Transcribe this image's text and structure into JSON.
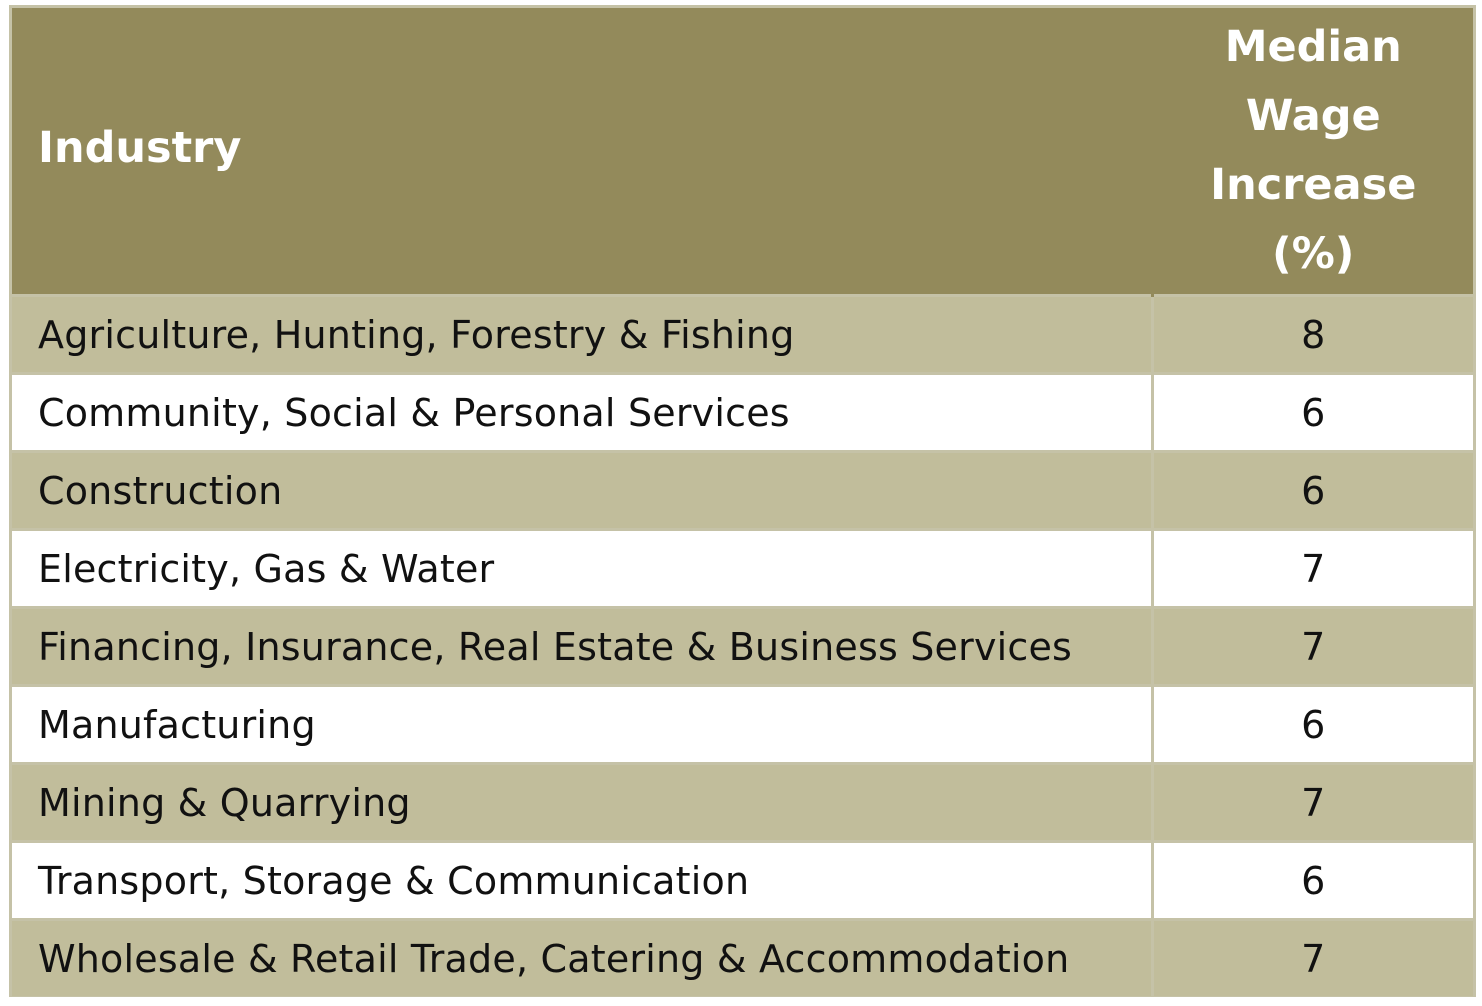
{
  "table": {
    "header": {
      "industry": "Industry",
      "value_lines": [
        "Median",
        "Wage",
        "Increase",
        "(%)"
      ]
    },
    "rows": [
      {
        "industry": "Agriculture, Hunting, Forestry & Fishing",
        "value": "8"
      },
      {
        "industry": "Community, Social & Personal Services",
        "value": "6"
      },
      {
        "industry": "Construction",
        "value": "6"
      },
      {
        "industry": "Electricity, Gas & Water",
        "value": "7"
      },
      {
        "industry": "Financing, Insurance, Real Estate & Business Services",
        "value": "7"
      },
      {
        "industry": "Manufacturing",
        "value": "6"
      },
      {
        "industry": "Mining & Quarrying",
        "value": "7"
      },
      {
        "industry": "Transport, Storage & Communication",
        "value": "6"
      },
      {
        "industry": "Wholesale & Retail Trade, Catering & Accommodation",
        "value": "7"
      }
    ]
  },
  "colors": {
    "header_bg": "#938a5b",
    "header_text": "#ffffff",
    "band_row": "#c1bd9b",
    "plain_row": "#ffffff",
    "grid_line": "#c5c2a7"
  }
}
